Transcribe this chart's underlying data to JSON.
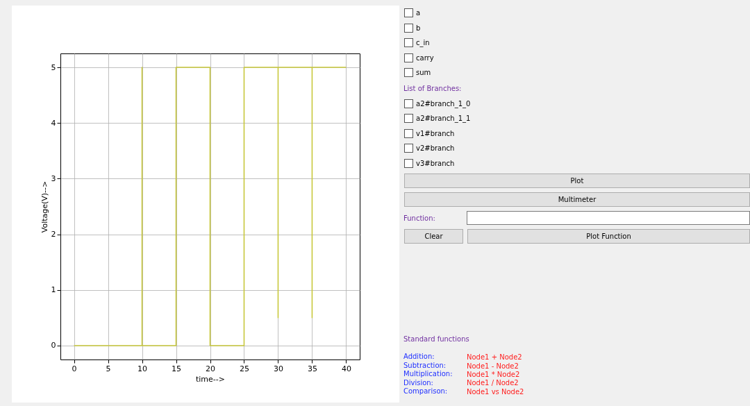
{
  "chart_data": [
    {
      "type": "line",
      "xlabel": "time-->",
      "ylabel": "Voltage(V)-->",
      "series": [
        {
          "color": "#c8c83c",
          "x": [
            0,
            10,
            10,
            10,
            15,
            15,
            20,
            20,
            25,
            25,
            30,
            30,
            30,
            35,
            35,
            35,
            40
          ],
          "values": [
            0,
            0,
            5,
            0,
            0,
            5,
            5,
            0,
            0,
            5,
            5,
            0.5,
            5,
            5,
            0.5,
            5,
            5
          ]
        }
      ],
      "xlim": [
        -2,
        42
      ],
      "xticks": [
        0,
        5,
        10,
        15,
        20,
        25,
        30,
        35,
        40
      ],
      "ylim": [
        -0.25,
        5.25
      ],
      "yticks": [
        0,
        1,
        2,
        3,
        4,
        5
      ],
      "grid": true,
      "line_style": "solid",
      "marker": "none"
    },
    {
      "type": "other",
      "annotations": [
        "a",
        "b",
        "c_in",
        "carry",
        "sum",
        "List of Branches:",
        "a2#branch_1_0",
        "a2#branch_1_1",
        "v1#branch",
        "v2#branch",
        "v3#branch",
        "Plot",
        "Multimeter",
        "Function:",
        "Clear",
        "Plot Function",
        "Standard functions",
        "Addition:",
        "Node1 + Node2",
        "Subtraction:",
        "Node1 - Node2",
        "Multiplication:",
        "Node1 * Node2",
        "Division:",
        "Node1 / Node2",
        "Comparison:",
        "Node1 vs Node2"
      ]
    }
  ]
}
